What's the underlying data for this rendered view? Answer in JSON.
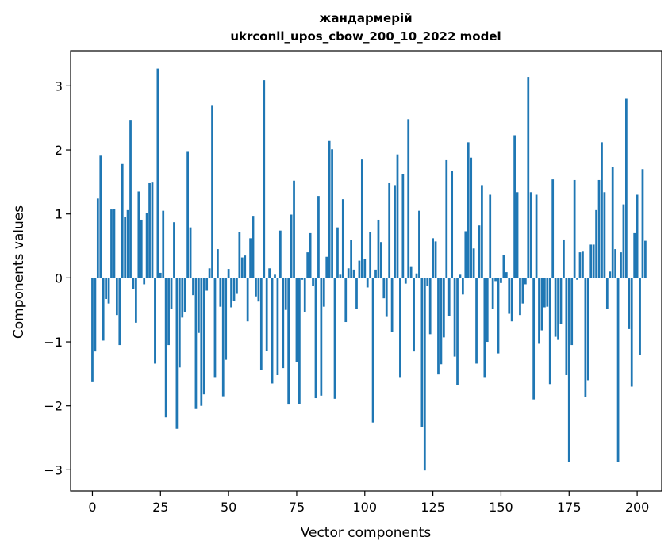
{
  "chart_data": {
    "type": "bar",
    "title": "жандармерій",
    "subtitle": "ukrconll_upos_cbow_200_10_2022 model",
    "xlabel": "Vector components",
    "ylabel": "Components values",
    "xlim": [
      -8,
      209
    ],
    "ylim": [
      -3.33,
      3.55
    ],
    "xticks": [
      0,
      25,
      50,
      75,
      100,
      125,
      150,
      175,
      200
    ],
    "yticks": [
      -3,
      -2,
      -1,
      0,
      1,
      2,
      3
    ],
    "ytick_labels": [
      "−3",
      "−2",
      "−1",
      "0",
      "1",
      "2",
      "3"
    ],
    "bar_color": "#1f77b4",
    "values": [
      -1.63,
      -1.15,
      1.24,
      1.91,
      -0.98,
      -0.33,
      -0.4,
      1.07,
      1.08,
      -0.58,
      -1.05,
      1.78,
      0.95,
      1.06,
      2.47,
      -0.18,
      -0.7,
      1.35,
      0.91,
      -0.1,
      1.02,
      1.48,
      1.49,
      -1.34,
      3.27,
      0.08,
      1.05,
      -2.18,
      -1.05,
      -0.48,
      0.87,
      -2.36,
      -1.4,
      -0.62,
      -0.54,
      1.97,
      0.79,
      -0.27,
      -2.05,
      -0.86,
      -2.0,
      -1.82,
      -0.2,
      0.15,
      2.69,
      -1.55,
      0.45,
      -0.45,
      -1.85,
      -1.28,
      0.14,
      -0.46,
      -0.36,
      -0.25,
      0.72,
      0.32,
      0.35,
      -0.68,
      0.62,
      0.97,
      -0.29,
      -0.37,
      -1.44,
      3.09,
      -1.14,
      0.15,
      -1.65,
      0.05,
      -1.52,
      0.74,
      -1.41,
      -0.5,
      -1.98,
      0.99,
      1.52,
      -1.32,
      -1.97,
      -0.03,
      -0.54,
      0.4,
      0.7,
      -0.12,
      -1.88,
      1.28,
      -1.84,
      -0.45,
      0.33,
      2.14,
      2.01,
      -1.89,
      0.79,
      0.05,
      1.23,
      -0.69,
      0.15,
      0.59,
      0.13,
      -0.48,
      0.27,
      1.85,
      0.29,
      -0.15,
      0.72,
      -2.26,
      0.13,
      0.91,
      0.56,
      -0.32,
      -0.61,
      1.48,
      -0.85,
      1.45,
      1.93,
      -1.55,
      1.62,
      -0.09,
      2.48,
      0.17,
      -1.15,
      0.07,
      1.05,
      -2.33,
      -3.01,
      -0.13,
      -0.88,
      0.62,
      0.57,
      -1.51,
      -1.35,
      -0.93,
      1.84,
      -0.6,
      1.67,
      -1.23,
      -1.67,
      0.05,
      -0.26,
      0.73,
      2.12,
      1.88,
      0.46,
      -1.34,
      0.82,
      1.45,
      -1.55,
      -1.0,
      1.3,
      -0.48,
      -0.05,
      -1.18,
      -0.08,
      0.36,
      0.09,
      -0.56,
      -0.68,
      2.23,
      1.34,
      -0.58,
      -0.4,
      -0.1,
      3.14,
      1.34,
      -1.9,
      1.3,
      -1.03,
      -0.82,
      -0.46,
      -0.45,
      -1.66,
      1.54,
      -0.92,
      -0.97,
      -0.72,
      0.6,
      -1.52,
      -2.88,
      -1.05,
      1.53,
      -0.03,
      0.4,
      0.41,
      -1.86,
      -1.6,
      0.52,
      0.52,
      1.06,
      1.53,
      2.12,
      1.34,
      -0.48,
      0.1,
      1.74,
      0.45,
      -2.88,
      0.4,
      1.15,
      2.8,
      -0.8,
      -1.7,
      0.7,
      1.3,
      -1.2,
      1.7,
      0.58
    ]
  }
}
